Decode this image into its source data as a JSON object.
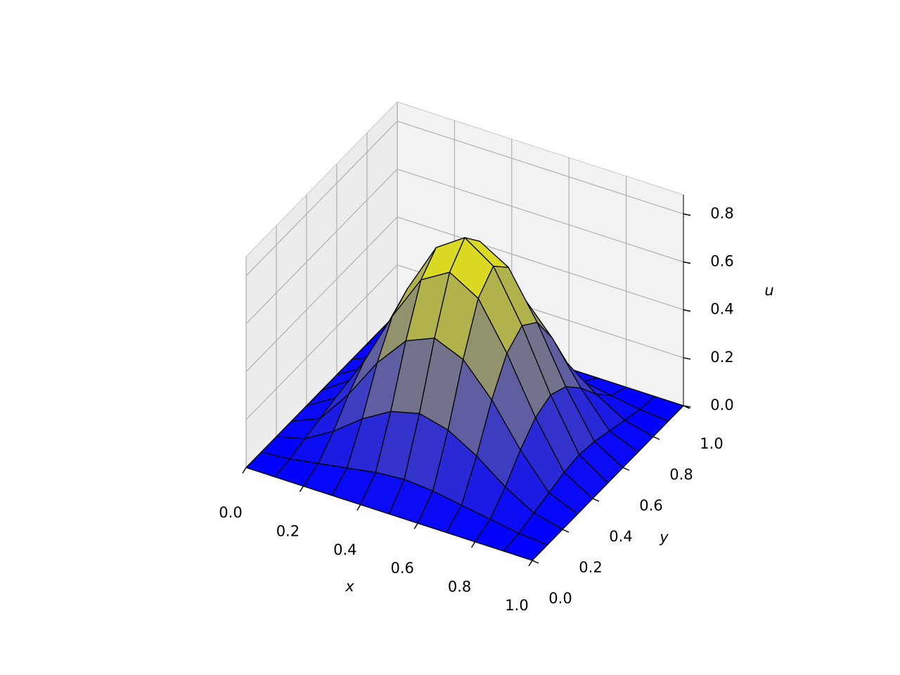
{
  "chart_data": {
    "type": "surface",
    "xlabel": "x",
    "ylabel": "y",
    "zlabel": "u",
    "x": [
      0,
      0.1,
      0.2,
      0.3,
      0.4,
      0.5,
      0.6,
      0.7,
      0.8,
      0.9,
      1
    ],
    "y": [
      0,
      0.1,
      0.2,
      0.3,
      0.4,
      0.5,
      0.6,
      0.7,
      0.8,
      0.9,
      1
    ],
    "z": [
      [
        0,
        0,
        0,
        0,
        0,
        0,
        0,
        0,
        0,
        0,
        0
      ],
      [
        0,
        0.01,
        0.03,
        0.05,
        0.07,
        0.08,
        0.07,
        0.05,
        0.03,
        0.01,
        0
      ],
      [
        0,
        0.03,
        0.1,
        0.19,
        0.26,
        0.29,
        0.26,
        0.19,
        0.1,
        0.03,
        0
      ],
      [
        0,
        0.05,
        0.19,
        0.36,
        0.49,
        0.54,
        0.49,
        0.36,
        0.19,
        0.05,
        0
      ],
      [
        0,
        0.07,
        0.26,
        0.49,
        0.68,
        0.75,
        0.68,
        0.49,
        0.26,
        0.07,
        0
      ],
      [
        0,
        0.08,
        0.29,
        0.54,
        0.75,
        0.83,
        0.75,
        0.54,
        0.29,
        0.08,
        0
      ],
      [
        0,
        0.07,
        0.26,
        0.49,
        0.68,
        0.75,
        0.68,
        0.49,
        0.26,
        0.07,
        0
      ],
      [
        0,
        0.05,
        0.19,
        0.36,
        0.49,
        0.54,
        0.49,
        0.36,
        0.19,
        0.05,
        0
      ],
      [
        0,
        0.03,
        0.1,
        0.19,
        0.26,
        0.29,
        0.26,
        0.19,
        0.1,
        0.03,
        0
      ],
      [
        0,
        0.01,
        0.03,
        0.05,
        0.07,
        0.08,
        0.07,
        0.05,
        0.03,
        0.01,
        0
      ],
      [
        0,
        0,
        0,
        0,
        0,
        0,
        0,
        0,
        0,
        0,
        0
      ]
    ],
    "cmap": [
      "#0000ff",
      "#ffff00"
    ],
    "edgecolor": "#000000",
    "xlim": [
      0,
      1
    ],
    "ylim": [
      0,
      1
    ],
    "zlim": [
      0,
      0.88
    ],
    "xticks": [
      {
        "value": 0,
        "label": "0.0"
      },
      {
        "value": 0.2,
        "label": "0.2"
      },
      {
        "value": 0.4,
        "label": "0.4"
      },
      {
        "value": 0.6,
        "label": "0.6"
      },
      {
        "value": 0.8,
        "label": "0.8"
      },
      {
        "value": 1,
        "label": "1.0"
      }
    ],
    "yticks": [
      {
        "value": 0,
        "label": "0.0"
      },
      {
        "value": 0.2,
        "label": "0.2"
      },
      {
        "value": 0.4,
        "label": "0.4"
      },
      {
        "value": 0.6,
        "label": "0.6"
      },
      {
        "value": 0.8,
        "label": "0.8"
      },
      {
        "value": 1,
        "label": "1.0"
      }
    ],
    "zticks": [
      {
        "value": 0,
        "label": "0.0"
      },
      {
        "value": 0.2,
        "label": "0.2"
      },
      {
        "value": 0.4,
        "label": "0.4"
      },
      {
        "value": 0.6,
        "label": "0.6"
      },
      {
        "value": 0.8,
        "label": "0.8"
      }
    ],
    "grid": true
  }
}
